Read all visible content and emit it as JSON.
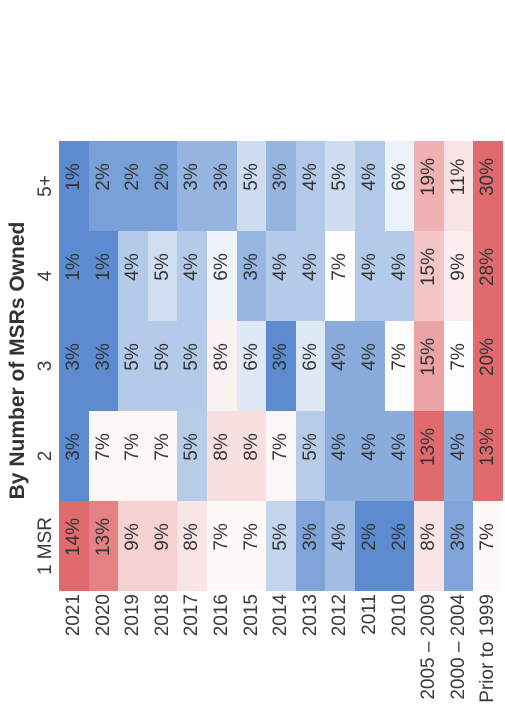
{
  "chart_data": {
    "type": "heatmap",
    "title": "By Number of MSRs Owned",
    "columns": [
      "1 MSR",
      "2",
      "3",
      "4",
      "5+"
    ],
    "rows": [
      "2021",
      "2020",
      "2019",
      "2018",
      "2017",
      "2016",
      "2015",
      "2014",
      "2013",
      "2012",
      "2011",
      "2010",
      "2005 – 2009",
      "2000 – 2004",
      "Prior to 1999"
    ],
    "values": [
      [
        14,
        3,
        3,
        1,
        1
      ],
      [
        13,
        7,
        3,
        1,
        2
      ],
      [
        9,
        7,
        5,
        4,
        2
      ],
      [
        9,
        7,
        5,
        5,
        2
      ],
      [
        8,
        5,
        5,
        4,
        3
      ],
      [
        7,
        8,
        8,
        6,
        3
      ],
      [
        7,
        8,
        6,
        3,
        5
      ],
      [
        5,
        7,
        3,
        4,
        3
      ],
      [
        3,
        5,
        6,
        4,
        4
      ],
      [
        4,
        4,
        4,
        7,
        5
      ],
      [
        2,
        4,
        4,
        4,
        4
      ],
      [
        2,
        4,
        7,
        4,
        6
      ],
      [
        8,
        13,
        15,
        15,
        19
      ],
      [
        3,
        4,
        7,
        9,
        11
      ],
      [
        7,
        13,
        20,
        28,
        30
      ]
    ],
    "value_format": "percent",
    "color_scale": {
      "low": "#3f78c6",
      "mid": "#ffffff",
      "high": "#dd5b5f"
    }
  }
}
